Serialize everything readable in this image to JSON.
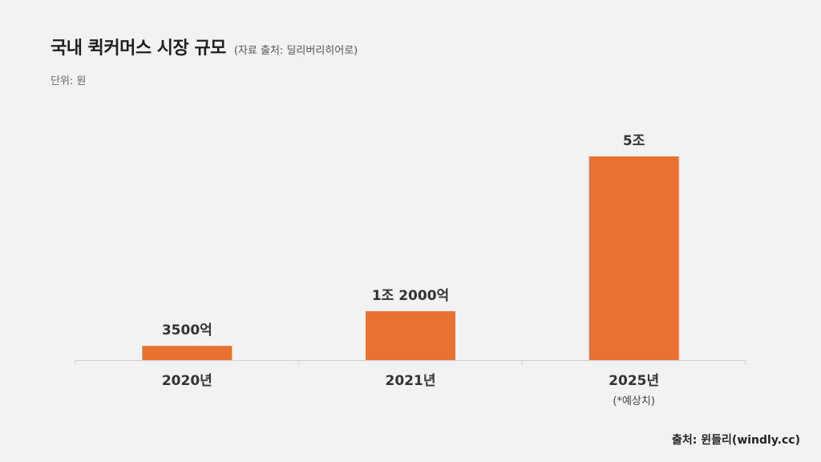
{
  "title": "국내 퀵커머스 시장 규모",
  "subtitle": "(자료 출처: 딜리버리히어로)",
  "unit_label": "단위: 원",
  "source": "출처: 윈들리(windly.cc)",
  "colors": {
    "bar": "#e97232",
    "background": "#f2f2f2",
    "axis": "#d0d0d0",
    "text": "#222222"
  },
  "chart_data": {
    "type": "bar",
    "categories": [
      "2020년",
      "2021년",
      "2025년"
    ],
    "category_notes": [
      "",
      "",
      "(*예상치)"
    ],
    "values": [
      3500,
      12000,
      50000
    ],
    "value_unit": "억 원",
    "data_labels": [
      "3500억",
      "1조 2000억",
      "5조"
    ],
    "ylim": [
      0,
      50000
    ],
    "grid": false,
    "legend": "none"
  }
}
